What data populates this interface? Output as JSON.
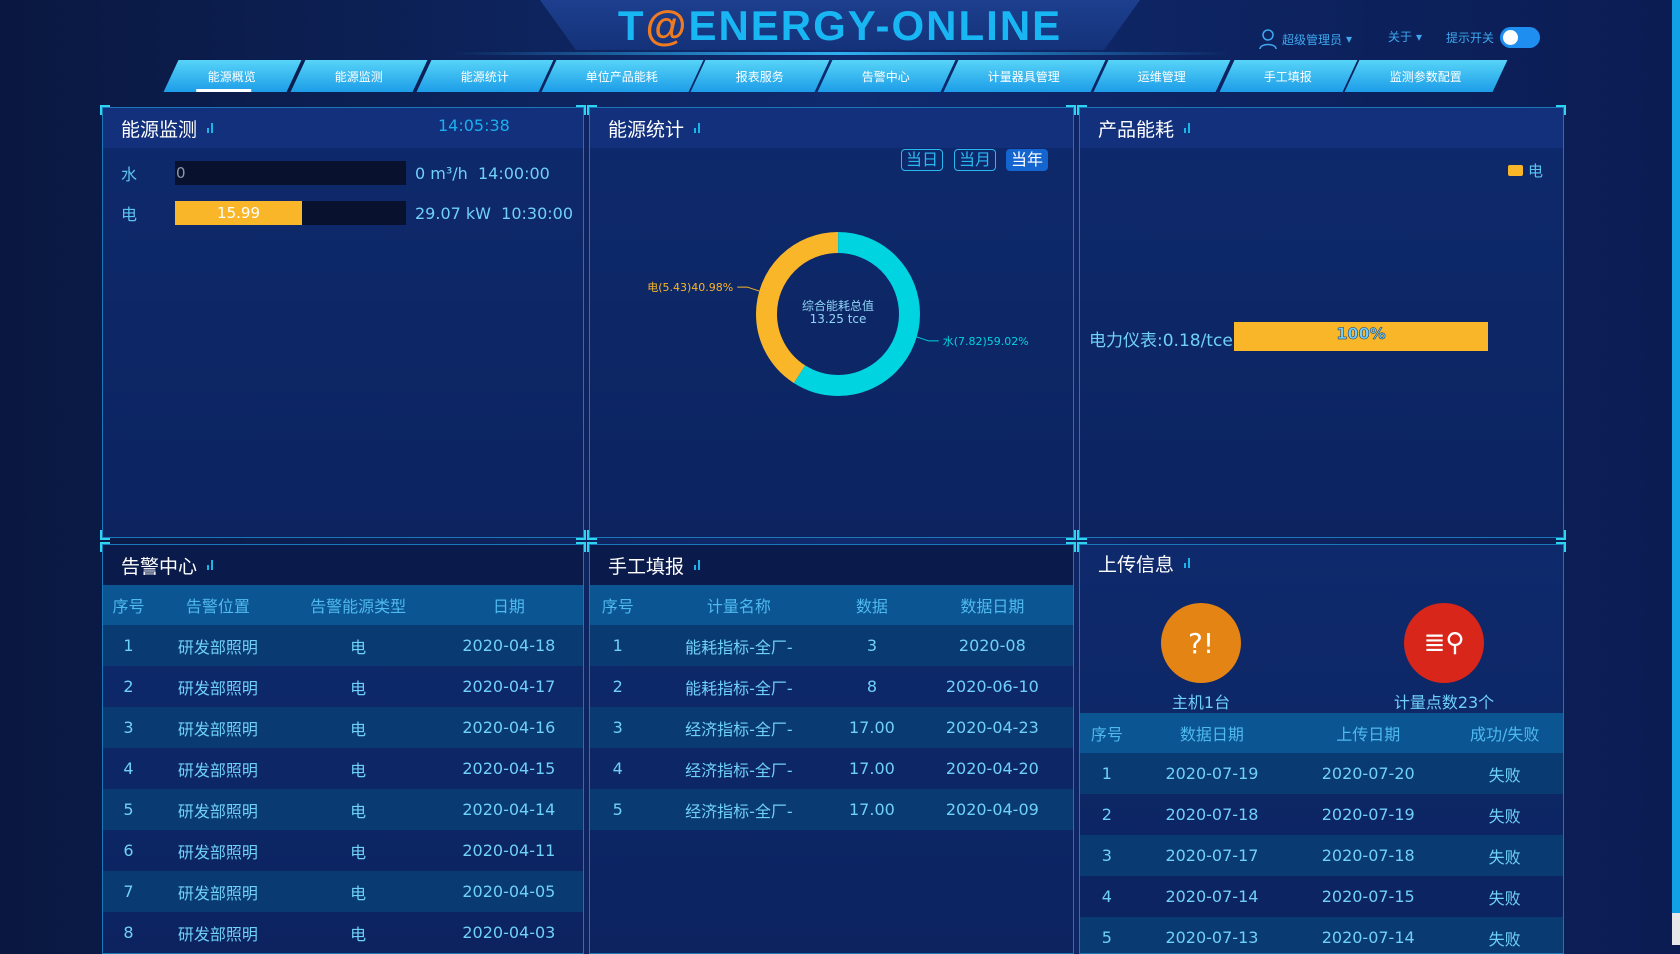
{
  "header": {
    "title_pre": "T",
    "title_at": "@",
    "title_post": "ENERGY-ONLINE",
    "user": "超级管理员",
    "about": "关于",
    "tip_switch": "提示开关",
    "tip_switch_on": true
  },
  "nav": [
    "能源概览",
    "能源监测",
    "能源统计",
    "单位产品能耗",
    "报表服务",
    "告警中心",
    "计量器具管理",
    "运维管理",
    "手工填报",
    "监测参数配置"
  ],
  "nav_active": 0,
  "monitor": {
    "title": "能源监测",
    "time": "14:05:38",
    "rows": [
      {
        "label": "水",
        "value": "0",
        "fraction": 0,
        "reading": "0 m³/h",
        "time": "14:00:00"
      },
      {
        "label": "电",
        "value": "15.99",
        "fraction": 0.55,
        "reading": "29.07 kW",
        "time": "10:30:00"
      }
    ]
  },
  "stats": {
    "title": "能源统计",
    "buttons": [
      "当日",
      "当月",
      "当年"
    ],
    "active_button": 2,
    "center_label": "综合能耗总值",
    "center_value": "13.25 tce",
    "chart_data": {
      "type": "pie",
      "series": [
        {
          "name": "水",
          "value": 7.82,
          "percent": 59.02,
          "label": "水(7.82)59.02%",
          "color": "#00d4e0"
        },
        {
          "name": "电",
          "value": 5.43,
          "percent": 40.98,
          "label": "电(5.43)40.98%",
          "color": "#f9b628"
        }
      ]
    }
  },
  "product": {
    "title": "产品能耗",
    "legend": "电",
    "legend_color": "#f9b628",
    "chart_data": {
      "type": "bar",
      "categories": [
        "电力仪表:0.18/tce"
      ],
      "values": [
        100
      ],
      "value_labels": [
        "100%"
      ]
    }
  },
  "alarm": {
    "title": "告警中心",
    "columns": [
      "序号",
      "告警位置",
      "告警能源类型",
      "日期"
    ],
    "rows": [
      [
        "1",
        "研发部照明",
        "电",
        "2020-04-18"
      ],
      [
        "2",
        "研发部照明",
        "电",
        "2020-04-17"
      ],
      [
        "3",
        "研发部照明",
        "电",
        "2020-04-16"
      ],
      [
        "4",
        "研发部照明",
        "电",
        "2020-04-15"
      ],
      [
        "5",
        "研发部照明",
        "电",
        "2020-04-14"
      ],
      [
        "6",
        "研发部照明",
        "电",
        "2020-04-11"
      ],
      [
        "7",
        "研发部照明",
        "电",
        "2020-04-05"
      ],
      [
        "8",
        "研发部照明",
        "电",
        "2020-04-03"
      ]
    ]
  },
  "manual": {
    "title": "手工填报",
    "columns": [
      "序号",
      "计量名称",
      "数据",
      "数据日期"
    ],
    "rows": [
      [
        "1",
        "能耗指标-全厂-",
        "3",
        "2020-08"
      ],
      [
        "2",
        "能耗指标-全厂-",
        "8",
        "2020-06-10"
      ],
      [
        "3",
        "经济指标-全厂-",
        "17.00",
        "2020-04-23"
      ],
      [
        "4",
        "经济指标-全厂-",
        "17.00",
        "2020-04-20"
      ],
      [
        "5",
        "经济指标-全厂-",
        "17.00",
        "2020-04-09"
      ]
    ]
  },
  "upload": {
    "title": "上传信息",
    "host_label": "主机1台",
    "points_label": "计量点数23个",
    "columns": [
      "序号",
      "数据日期",
      "上传日期",
      "成功/失败"
    ],
    "rows": [
      [
        "1",
        "2020-07-19",
        "2020-07-20",
        "失败"
      ],
      [
        "2",
        "2020-07-18",
        "2020-07-19",
        "失败"
      ],
      [
        "3",
        "2020-07-17",
        "2020-07-18",
        "失败"
      ],
      [
        "4",
        "2020-07-14",
        "2020-07-15",
        "失败"
      ],
      [
        "5",
        "2020-07-13",
        "2020-07-14",
        "失败"
      ]
    ]
  }
}
